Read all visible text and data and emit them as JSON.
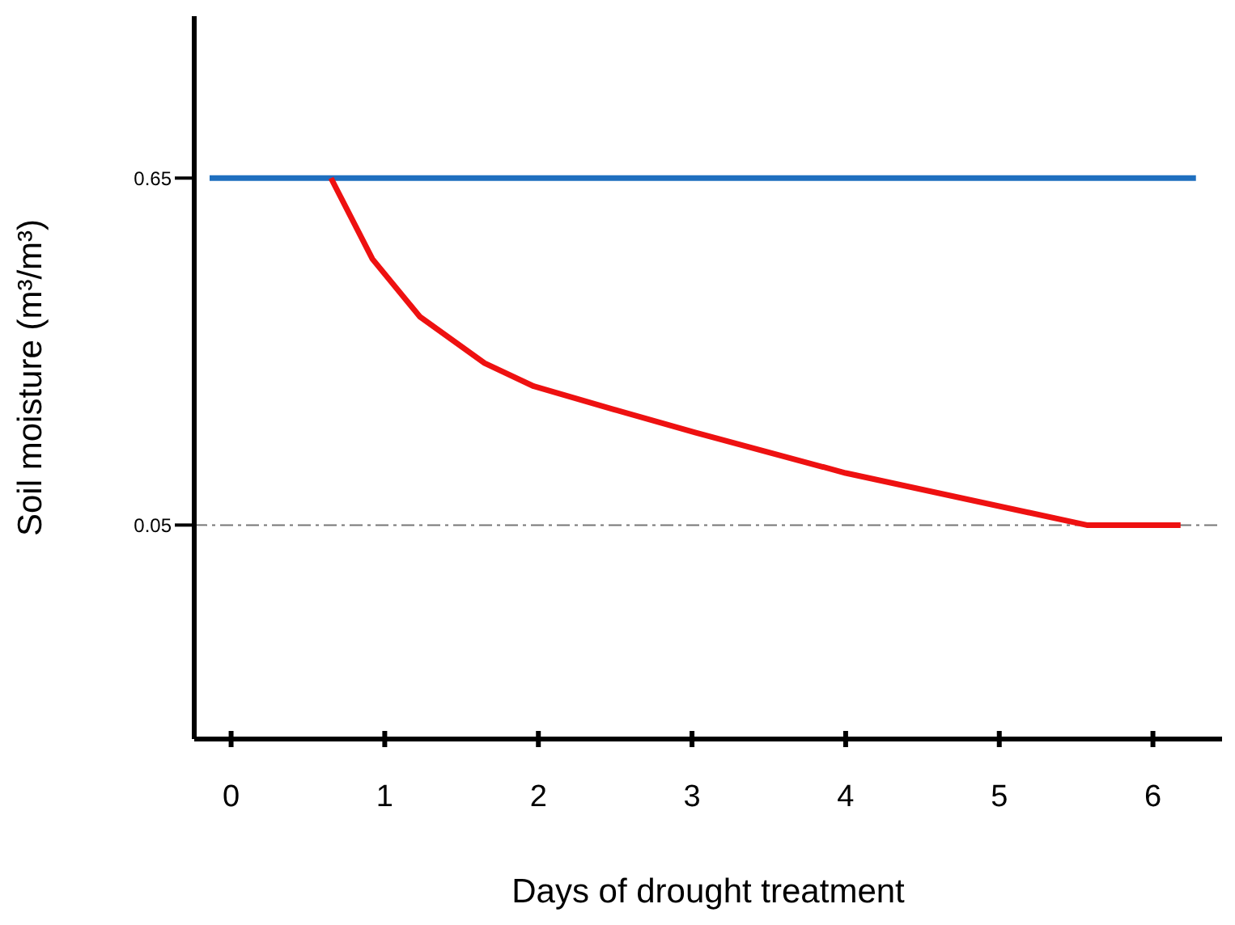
{
  "chart_data": {
    "type": "line",
    "xlabel": "Days of drought treatment",
    "ylabel": "Soil moisture (m³/m³)",
    "xlim": [
      -0.24,
      6.45
    ],
    "xticks": [
      0,
      1,
      2,
      3,
      4,
      5,
      6
    ],
    "ylim": [
      -0.32,
      0.93
    ],
    "yticks": [
      0.05,
      0.65
    ],
    "series": [
      {
        "color": "#1f6fbf",
        "x": [
          -0.14,
          6.28
        ],
        "values": [
          0.65,
          0.65
        ]
      },
      {
        "color": "#ee1111",
        "x": [
          0.65,
          0.92,
          1.23,
          1.65,
          1.97,
          2.49,
          3.02,
          4.0,
          5.57,
          6.18
        ],
        "values": [
          0.65,
          0.51,
          0.41,
          0.33,
          0.29,
          0.25,
          0.21,
          0.14,
          0.05,
          0.05
        ]
      }
    ],
    "ref_lines": [
      {
        "axis": "y",
        "value": 0.05,
        "color": "#777777",
        "line_style": "dashdot"
      }
    ],
    "grid": false,
    "legend": false,
    "marker": "none",
    "line_style": "solid"
  }
}
